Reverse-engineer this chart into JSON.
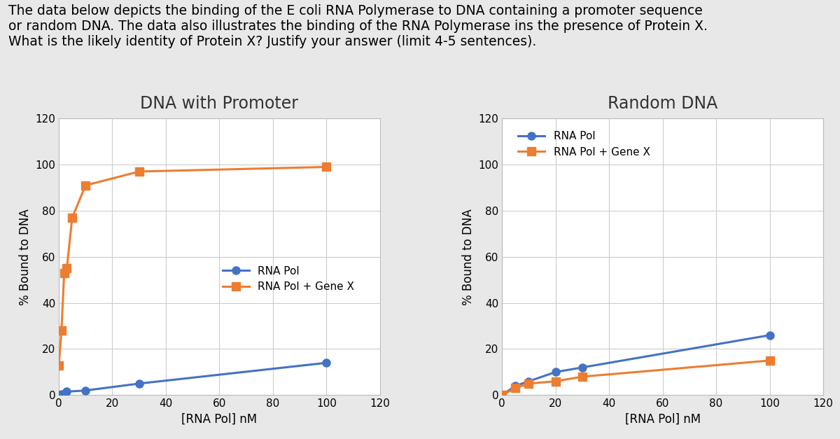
{
  "title_text": "The data below depicts the binding of the E coli RNA Polymerase to DNA containing a promoter sequence\nor random DNA. The data also illustrates the binding of the RNA Polymerase ins the presence of Protein X.\nWhat is the likely identity of Protein X? Justify your answer (limit 4-5 sentences).",
  "left_title": "DNA with Promoter",
  "right_title": "Random DNA",
  "xlabel": "[RNA Pol] nM",
  "ylabel": "% Bound to DNA",
  "xlim": [
    0,
    120
  ],
  "ylim": [
    0,
    120
  ],
  "xticks": [
    0,
    20,
    40,
    60,
    80,
    100,
    120
  ],
  "yticks": [
    0,
    20,
    40,
    60,
    80,
    100,
    120
  ],
  "left_rnapol_x": [
    0,
    1,
    3,
    10,
    30,
    100
  ],
  "left_rnapol_y": [
    0,
    0.5,
    1.5,
    2,
    5,
    14
  ],
  "left_geneX_x": [
    0,
    1,
    2,
    3,
    5,
    10,
    30,
    100
  ],
  "left_geneX_y": [
    13,
    28,
    53,
    55,
    77,
    91,
    97,
    99
  ],
  "right_rnapol_x": [
    0,
    5,
    10,
    20,
    30,
    100
  ],
  "right_rnapol_y": [
    0,
    4,
    6,
    10,
    12,
    26
  ],
  "right_geneX_x": [
    0,
    5,
    10,
    20,
    30,
    100
  ],
  "right_geneX_y": [
    0,
    3,
    5,
    6,
    8,
    15
  ],
  "color_rnapol": "#4472c4",
  "color_geneX": "#ed7d31",
  "legend_rnapol": "RNA Pol",
  "legend_geneX": "RNA Pol + Gene X",
  "marker_rnapol": "o",
  "marker_geneX": "s",
  "linewidth": 2.2,
  "markersize": 8,
  "background_color": "#e8e8e8",
  "plot_bg_color": "#ffffff",
  "grid_color": "#cccccc",
  "title_fontsize": 13.5,
  "axis_label_fontsize": 12,
  "tick_fontsize": 11,
  "subplot_title_fontsize": 17,
  "legend_fontsize": 11
}
